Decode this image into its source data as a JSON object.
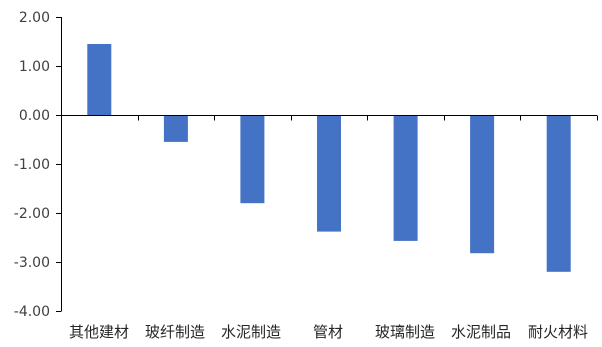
{
  "chart_data": {
    "type": "bar",
    "categories": [
      "其他建材",
      "玻纤制造",
      "水泥制造",
      "管材",
      "玻璃制造",
      "水泥制品",
      "耐火材料"
    ],
    "values": [
      1.45,
      -0.55,
      -1.8,
      -2.38,
      -2.57,
      -2.82,
      -3.2
    ],
    "y_ticks": [
      "2.00",
      "1.00",
      "0.00",
      "-1.00",
      "-2.00",
      "-3.00",
      "-4.00"
    ],
    "ylim": [
      -4,
      2
    ],
    "title": "",
    "xlabel": "",
    "ylabel": "",
    "grid": false,
    "legend": "none",
    "bar_color": "#4472C4",
    "axis_color": "#000000"
  }
}
